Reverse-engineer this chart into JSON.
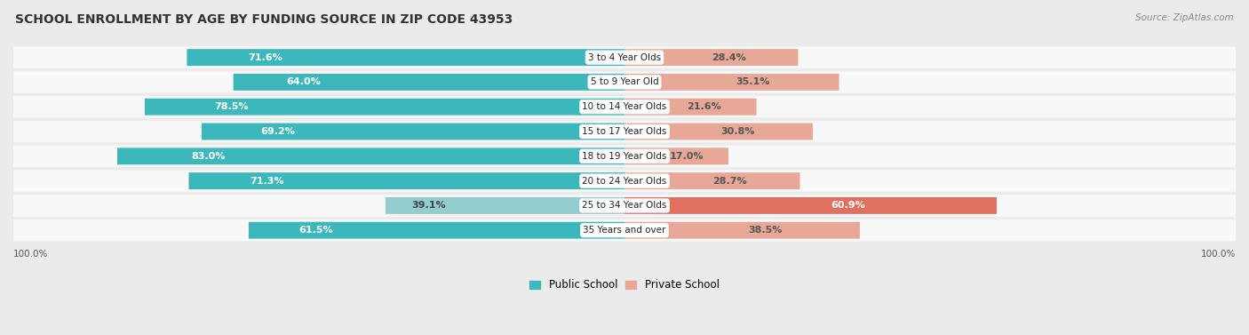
{
  "title": "SCHOOL ENROLLMENT BY AGE BY FUNDING SOURCE IN ZIP CODE 43953",
  "source": "Source: ZipAtlas.com",
  "categories": [
    "3 to 4 Year Olds",
    "5 to 9 Year Old",
    "10 to 14 Year Olds",
    "15 to 17 Year Olds",
    "18 to 19 Year Olds",
    "20 to 24 Year Olds",
    "25 to 34 Year Olds",
    "35 Years and over"
  ],
  "public_values": [
    71.6,
    64.0,
    78.5,
    69.2,
    83.0,
    71.3,
    39.1,
    61.5
  ],
  "private_values": [
    28.4,
    35.1,
    21.6,
    30.8,
    17.0,
    28.7,
    60.9,
    38.5
  ],
  "public_color": "#3CB8BC",
  "public_color_light": "#93CDD0",
  "private_color_strong": "#E07060",
  "private_color_light": "#E8A898",
  "bg_color": "#EBEBEB",
  "row_bg": "#F8F8F8",
  "title_fontsize": 10,
  "bar_label_fontsize": 8,
  "cat_label_fontsize": 7.5,
  "legend_fontsize": 8.5,
  "axis_label_fontsize": 7.5
}
